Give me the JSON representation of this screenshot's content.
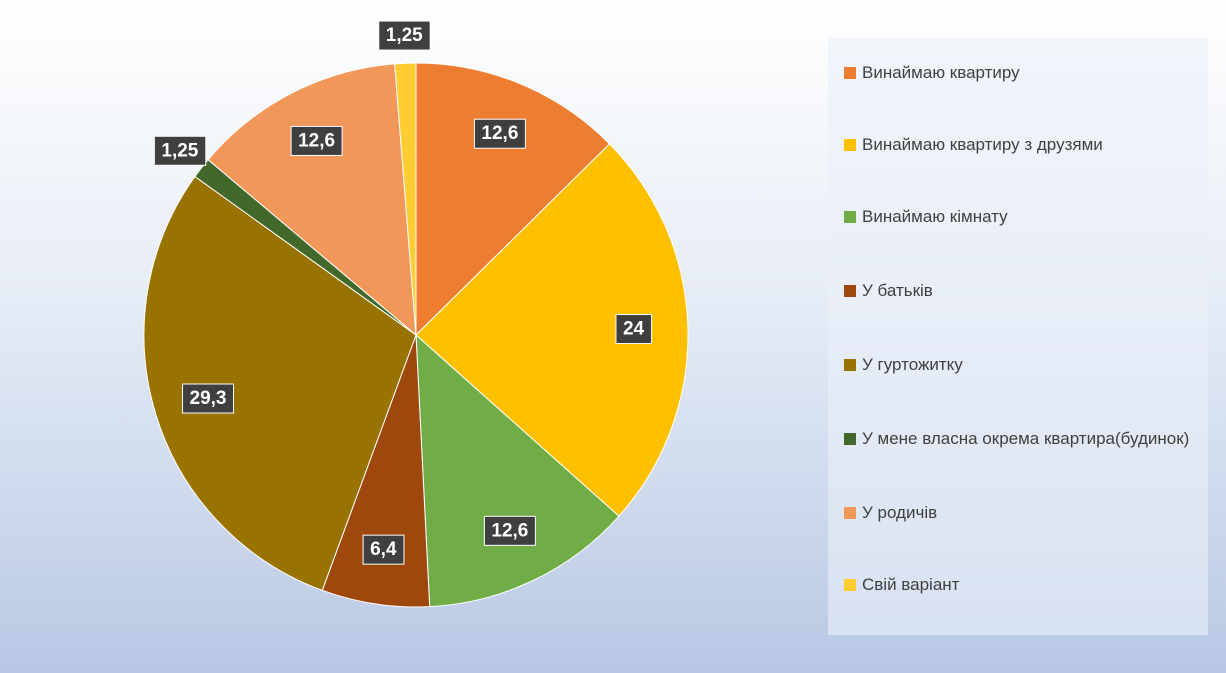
{
  "chart_data": {
    "type": "pie",
    "categories": [
      "Винаймаю квартиру",
      "Винаймаю квартиру з друзями",
      "Винаймаю кімнату",
      "У батьків",
      "У гуртожитку",
      "У мене власна окрема квартира(будинок)",
      "У родичів",
      "Свій варіант"
    ],
    "values": [
      12.6,
      24,
      12.6,
      6.4,
      29.3,
      1.25,
      12.6,
      1.25
    ],
    "value_labels": [
      "12,6",
      "24",
      "12,6",
      "6,4",
      "29,3",
      "1,25",
      "12,6",
      "1,25"
    ],
    "colors": [
      "#ed7d31",
      "#ffc000",
      "#70ad47",
      "#9e480e",
      "#997300",
      "#43682b",
      "#f1975a",
      "#ffcd33"
    ],
    "legend": "right"
  }
}
